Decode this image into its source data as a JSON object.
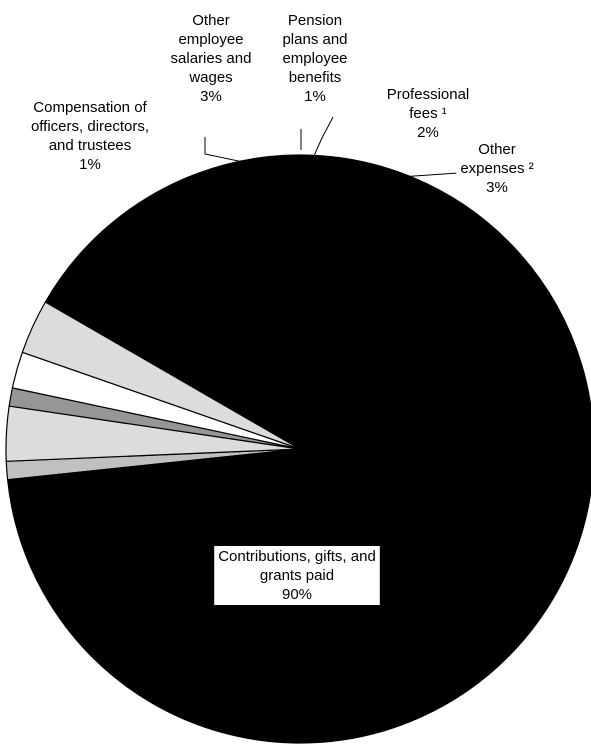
{
  "chart_data": {
    "type": "pie",
    "slices": [
      {
        "label": "Compensation of officers, directors, and trustees",
        "label_lines": [
          "Compensation of",
          "officers, directors,",
          "and trustees"
        ],
        "value": 1,
        "value_label": "1%",
        "color": "#c0c0c0"
      },
      {
        "label": "Other employee salaries and wages",
        "label_lines": [
          "Other",
          "employee",
          "salaries and",
          "wages"
        ],
        "value": 3,
        "value_label": "3%",
        "color": "#dcdcdc"
      },
      {
        "label": "Pension plans and employee benefits",
        "label_lines": [
          "Pension",
          "plans and",
          "employee",
          "benefits"
        ],
        "value": 1,
        "value_label": "1%",
        "color": "#969696"
      },
      {
        "label": "Professional fees ¹",
        "label_lines": [
          "Professional",
          "fees ¹"
        ],
        "value": 2,
        "value_label": "2%",
        "color": "#ffffff"
      },
      {
        "label": "Other expenses ²",
        "label_lines": [
          "Other",
          "expenses ²"
        ],
        "value": 3,
        "value_label": "3%",
        "color": "#dcdcdc"
      },
      {
        "label": "Contributions, gifts, and grants paid",
        "label_lines": [
          "Contributions, gifts, and",
          "grants paid"
        ],
        "value": 90,
        "value_label": "90%",
        "color": "#000000"
      }
    ]
  }
}
